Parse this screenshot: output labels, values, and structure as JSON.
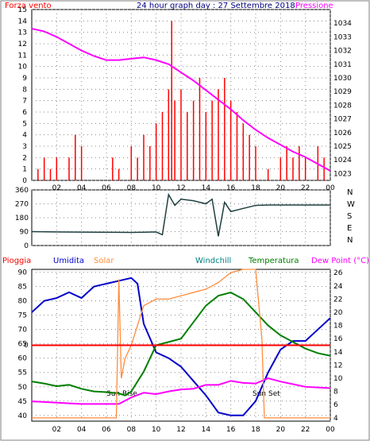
{
  "header": {
    "left_label": "Forza vento",
    "title": "24 hour graph day : 27 Settembre 2018",
    "right_label": "Pressione"
  },
  "colors": {
    "wind_gust": "#ff0000",
    "wind_avg": "#0000ff",
    "pressure": "#ff00ff",
    "direction": "#1f3f3f",
    "humidity": "#0000cc",
    "solar": "#ff8c3c",
    "windchill": "#00a000",
    "temperature": "#008000",
    "dew_point": "#ff00ff",
    "rain": "#ff0000",
    "axis_green": "#008040",
    "axis_blue": "#000080"
  },
  "direction_labels": [
    "N",
    "W",
    "S",
    "E",
    "N"
  ],
  "lower_legend": {
    "rain": "Pioggia",
    "humidity": "Umidita",
    "solar": "Solar",
    "windchill": "Windchill",
    "temperature": "Temperatura",
    "dew_point": "Dew Point (°C)"
  },
  "annotations": {
    "sunrise": "Sun Rise",
    "sunset": "Sun Set",
    "rain_value": "0"
  },
  "chart_data": [
    {
      "type": "bar",
      "title": "Forza vento",
      "x_ticks": [
        "02",
        "04",
        "06",
        "08",
        "10",
        "12",
        "14",
        "16",
        "18",
        "20",
        "22",
        "00"
      ],
      "ylim": [
        0,
        15
      ],
      "y_ticks": [
        0,
        1,
        2,
        3,
        4,
        5,
        6,
        7,
        8,
        9,
        10,
        11,
        12,
        13,
        14,
        15
      ],
      "series": [
        {
          "name": "Forza vento",
          "x": [
            0.5,
            1,
            1.5,
            2,
            3,
            3.5,
            4,
            6,
            6.5,
            7,
            8,
            8.5,
            9,
            9.5,
            10,
            10.5,
            11,
            11.25,
            11.5,
            12,
            12.5,
            13,
            13.5,
            14,
            14.5,
            15,
            15.5,
            16,
            16.5,
            17,
            17.5,
            18,
            19,
            20,
            20.5,
            21,
            21.5,
            22,
            23,
            23.5
          ],
          "values": [
            1,
            2,
            1,
            2,
            2,
            4,
            3,
            0,
            2,
            1,
            3,
            2,
            4,
            3,
            5,
            6,
            8,
            14,
            7,
            8,
            6,
            7,
            9,
            6,
            7,
            8,
            9,
            7,
            6,
            5,
            4,
            3,
            1,
            2,
            3,
            2,
            3,
            2,
            3,
            2
          ]
        },
        {
          "name": "Pressione",
          "x": [
            0,
            1,
            2,
            3,
            4,
            5,
            6,
            7,
            8,
            9,
            10,
            11,
            12,
            13,
            14,
            15,
            16,
            17,
            18,
            19,
            20,
            21,
            22,
            23,
            24
          ],
          "values": [
            1033.6,
            1033.4,
            1033.0,
            1032.5,
            1032.0,
            1031.6,
            1031.3,
            1031.3,
            1031.4,
            1031.5,
            1031.3,
            1031.0,
            1030.4,
            1029.8,
            1029.1,
            1028.4,
            1027.7,
            1026.9,
            1026.2,
            1025.6,
            1025.1,
            1024.6,
            1024.2,
            1023.7,
            1023.2
          ]
        }
      ],
      "y2lim": [
        1022.5,
        1035
      ],
      "y2_ticks": [
        1023,
        1024,
        1025,
        1026,
        1027,
        1028,
        1029,
        1030,
        1031,
        1032,
        1033,
        1034
      ]
    },
    {
      "type": "line",
      "title": "",
      "x_ticks": [],
      "ylim": [
        0,
        360
      ],
      "y_ticks": [
        0,
        90,
        180,
        270,
        360
      ],
      "series": [
        {
          "name": "",
          "x": [
            0,
            2,
            4,
            6,
            8,
            9,
            10,
            10.5,
            11,
            11.5,
            12,
            13,
            14,
            14.5,
            15,
            15.5,
            16,
            17,
            18,
            19,
            20,
            22,
            24
          ],
          "values": [
            90,
            88,
            87,
            86,
            85,
            86,
            88,
            70,
            330,
            260,
            300,
            290,
            270,
            300,
            60,
            280,
            220,
            240,
            260,
            262,
            262,
            262,
            262
          ]
        }
      ]
    },
    {
      "type": "line",
      "title": "",
      "x_ticks": [
        "02",
        "04",
        "06",
        "08",
        "10",
        "12",
        "14",
        "16",
        "18",
        "20",
        "22",
        "00"
      ],
      "ylim": [
        38,
        91
      ],
      "y_ticks": [
        40,
        45,
        50,
        55,
        60,
        65,
        70,
        75,
        80,
        85,
        90
      ],
      "y2lim": [
        3.5,
        26.5
      ],
      "y2_ticks": [
        4,
        6,
        8,
        10,
        12,
        14,
        16,
        18,
        20,
        22,
        24,
        26
      ],
      "series": [
        {
          "name": "Umidita",
          "axis": "left",
          "x": [
            0,
            1,
            2,
            3,
            4,
            5,
            6,
            7,
            8,
            8.5,
            9,
            10,
            11,
            12,
            13,
            14,
            15,
            16,
            17,
            18,
            19,
            20,
            21,
            22,
            23,
            24
          ],
          "values": [
            76,
            80,
            81,
            83,
            81,
            85,
            86,
            87,
            88,
            86,
            72,
            62,
            60,
            57,
            52,
            47,
            41,
            40,
            40,
            45,
            55,
            63,
            66,
            66,
            70,
            74
          ]
        },
        {
          "name": "Temperatura",
          "axis": "right",
          "x": [
            0,
            1,
            2,
            3,
            4,
            5,
            6,
            7,
            7.5,
            8,
            9,
            10,
            11,
            12,
            13,
            14,
            15,
            16,
            17,
            18,
            19,
            20,
            21,
            22,
            23,
            24
          ],
          "values": [
            9.5,
            9.2,
            8.8,
            9.0,
            8.4,
            8.0,
            7.9,
            7.7,
            7.4,
            8.0,
            11,
            15,
            15.5,
            16,
            18.5,
            21,
            22.5,
            23,
            22,
            20,
            18,
            16.5,
            15.5,
            14.5,
            13.8,
            13.4
          ]
        },
        {
          "name": "Dew Point (°C)",
          "axis": "right",
          "x": [
            0,
            1,
            2,
            3,
            4,
            5,
            6,
            7,
            8,
            9,
            10,
            11,
            12,
            13,
            14,
            15,
            16,
            17,
            18,
            19,
            20,
            21,
            22,
            23,
            24
          ],
          "values": [
            6.5,
            6.4,
            6.3,
            6.2,
            6.1,
            6.1,
            6.1,
            6.1,
            7.1,
            7.8,
            7.6,
            8.0,
            8.3,
            8.4,
            9.0,
            9.0,
            9.6,
            9.3,
            9.2,
            10.0,
            9.5,
            9.1,
            8.7,
            8.6,
            8.5
          ]
        },
        {
          "name": "Solar",
          "axis": "right",
          "x": [
            0,
            6.8,
            7,
            7.2,
            7.5,
            8,
            9,
            10,
            11,
            12,
            13,
            14,
            15,
            16,
            17,
            18,
            18.5,
            18.7,
            19,
            24
          ],
          "values": [
            4,
            4,
            25,
            10,
            13,
            15,
            21,
            22,
            22,
            22.5,
            23,
            23.5,
            24.5,
            26,
            26.5,
            26.5,
            16,
            4,
            4,
            4
          ]
        },
        {
          "name": "Pioggia",
          "axis": "left",
          "x": [
            0,
            24
          ],
          "values": [
            64.5,
            64.5
          ]
        }
      ]
    }
  ]
}
